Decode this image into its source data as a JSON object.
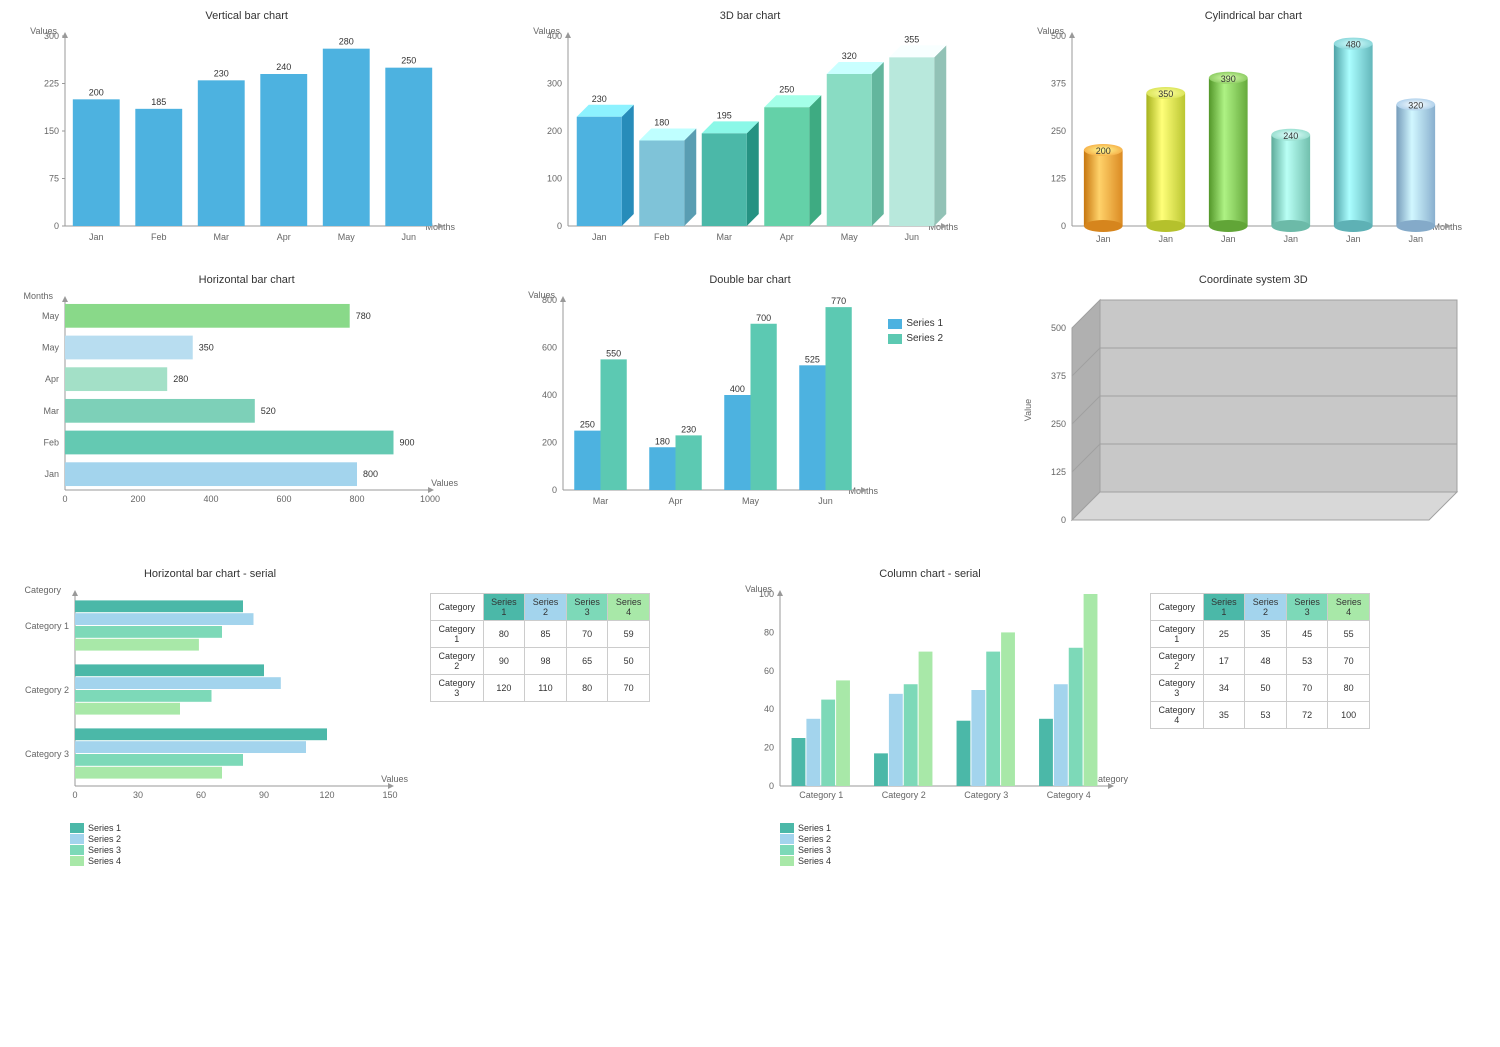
{
  "vertical_bar": {
    "title": "Vertical bar chart",
    "ylabel": "Values",
    "xlabel": "Months",
    "categories": [
      "Jan",
      "Feb",
      "Mar",
      "Apr",
      "May",
      "Jun"
    ],
    "values": [
      200,
      185,
      230,
      240,
      280,
      250
    ],
    "ymax": 300,
    "ytick": 75,
    "bar_color": "#4db2e0",
    "bar_width": 0.75
  },
  "bar3d": {
    "title": "3D bar chart",
    "ylabel": "Values",
    "xlabel": "Months",
    "categories": [
      "Jan",
      "Feb",
      "Mar",
      "Apr",
      "May",
      "Jun"
    ],
    "values": [
      230,
      180,
      195,
      250,
      320,
      355
    ],
    "ymax": 400,
    "ytick": 100,
    "bar_colors": [
      "#4db2e0",
      "#7fc3d8",
      "#4bb8a8",
      "#64d1a8",
      "#89dcc3",
      "#b8e8dc"
    ],
    "top_lighten": 0.25,
    "side_darken": 0.15,
    "depth": 12
  },
  "cylindrical": {
    "title": "Cylindrical bar chart",
    "ylabel": "Values",
    "xlabel": "Months",
    "categories": [
      "Jan",
      "Jan",
      "Jan",
      "Jan",
      "Jan",
      "Jan"
    ],
    "values": [
      200,
      350,
      390,
      240,
      480,
      320
    ],
    "ymax": 500,
    "ytick": 125,
    "bar_colors": [
      "#f5a43c",
      "#d4e04b",
      "#80c456",
      "#8bd9c7",
      "#7dd0d4",
      "#a3c9e8"
    ]
  },
  "horizontal_bar": {
    "title": "Horizontal bar chart",
    "ylabel": "Months",
    "xlabel": "Values",
    "categories": [
      "May",
      "May",
      "Apr",
      "Mar",
      "Feb",
      "Jan"
    ],
    "values": [
      780,
      350,
      280,
      520,
      900,
      800
    ],
    "xmax": 1000,
    "xtick": 200,
    "bar_colors": [
      "#89d989",
      "#b8ddf0",
      "#a3e0c7",
      "#7dd0b8",
      "#64c9b2",
      "#a3d4ed"
    ]
  },
  "double_bar": {
    "title": "Double bar chart",
    "ylabel": "Values",
    "xlabel": "Months",
    "categories": [
      "Mar",
      "Apr",
      "May",
      "Jun"
    ],
    "series1": {
      "label": "Series 1",
      "color": "#4db2e0",
      "values": [
        250,
        180,
        400,
        525
      ]
    },
    "series2": {
      "label": "Series 2",
      "color": "#5cc9b2",
      "values": [
        550,
        230,
        700,
        770
      ]
    },
    "ymax": 800,
    "ytick": 200
  },
  "coord3d": {
    "title": "Coordinate system 3D",
    "ylabel": "Value",
    "ymax": 500,
    "ytick": 125,
    "face_color": "#c8c8c8",
    "side_color": "#b0b0b0",
    "floor_color": "#d8d8d8",
    "grid_color": "#a0a0a0"
  },
  "hserial": {
    "title": "Horizontal bar chart - serial",
    "ylabel": "Category",
    "xlabel": "Values",
    "categories": [
      "Category 1",
      "Category 2",
      "Category 3"
    ],
    "series": [
      {
        "label": "Series 1",
        "color": "#4bb8a8",
        "values": [
          80,
          90,
          120
        ]
      },
      {
        "label": "Series 2",
        "color": "#a3d4ed",
        "values": [
          85,
          98,
          110
        ]
      },
      {
        "label": "Series 3",
        "color": "#7dd9b8",
        "values": [
          70,
          65,
          80
        ]
      },
      {
        "label": "Series 4",
        "color": "#a8e8a8",
        "values": [
          59,
          50,
          70
        ]
      }
    ],
    "xmax": 150,
    "xtick": 30,
    "table_header": "Category"
  },
  "column_serial": {
    "title": "Column chart - serial",
    "ylabel": "Values",
    "xlabel": "Category",
    "categories": [
      "Category 1",
      "Category 2",
      "Category 3",
      "Category 4"
    ],
    "series": [
      {
        "label": "Series 1",
        "color": "#4bb8a8",
        "values": [
          25,
          17,
          34,
          35
        ]
      },
      {
        "label": "Series 2",
        "color": "#a3d4ed",
        "values": [
          35,
          48,
          50,
          53
        ]
      },
      {
        "label": "Series 3",
        "color": "#7dd9b8",
        "values": [
          45,
          53,
          70,
          72
        ]
      },
      {
        "label": "Series 4",
        "color": "#a8e8a8",
        "values": [
          55,
          70,
          80,
          100
        ]
      }
    ],
    "ymax": 100,
    "ytick": 20,
    "table_header": "Category"
  }
}
